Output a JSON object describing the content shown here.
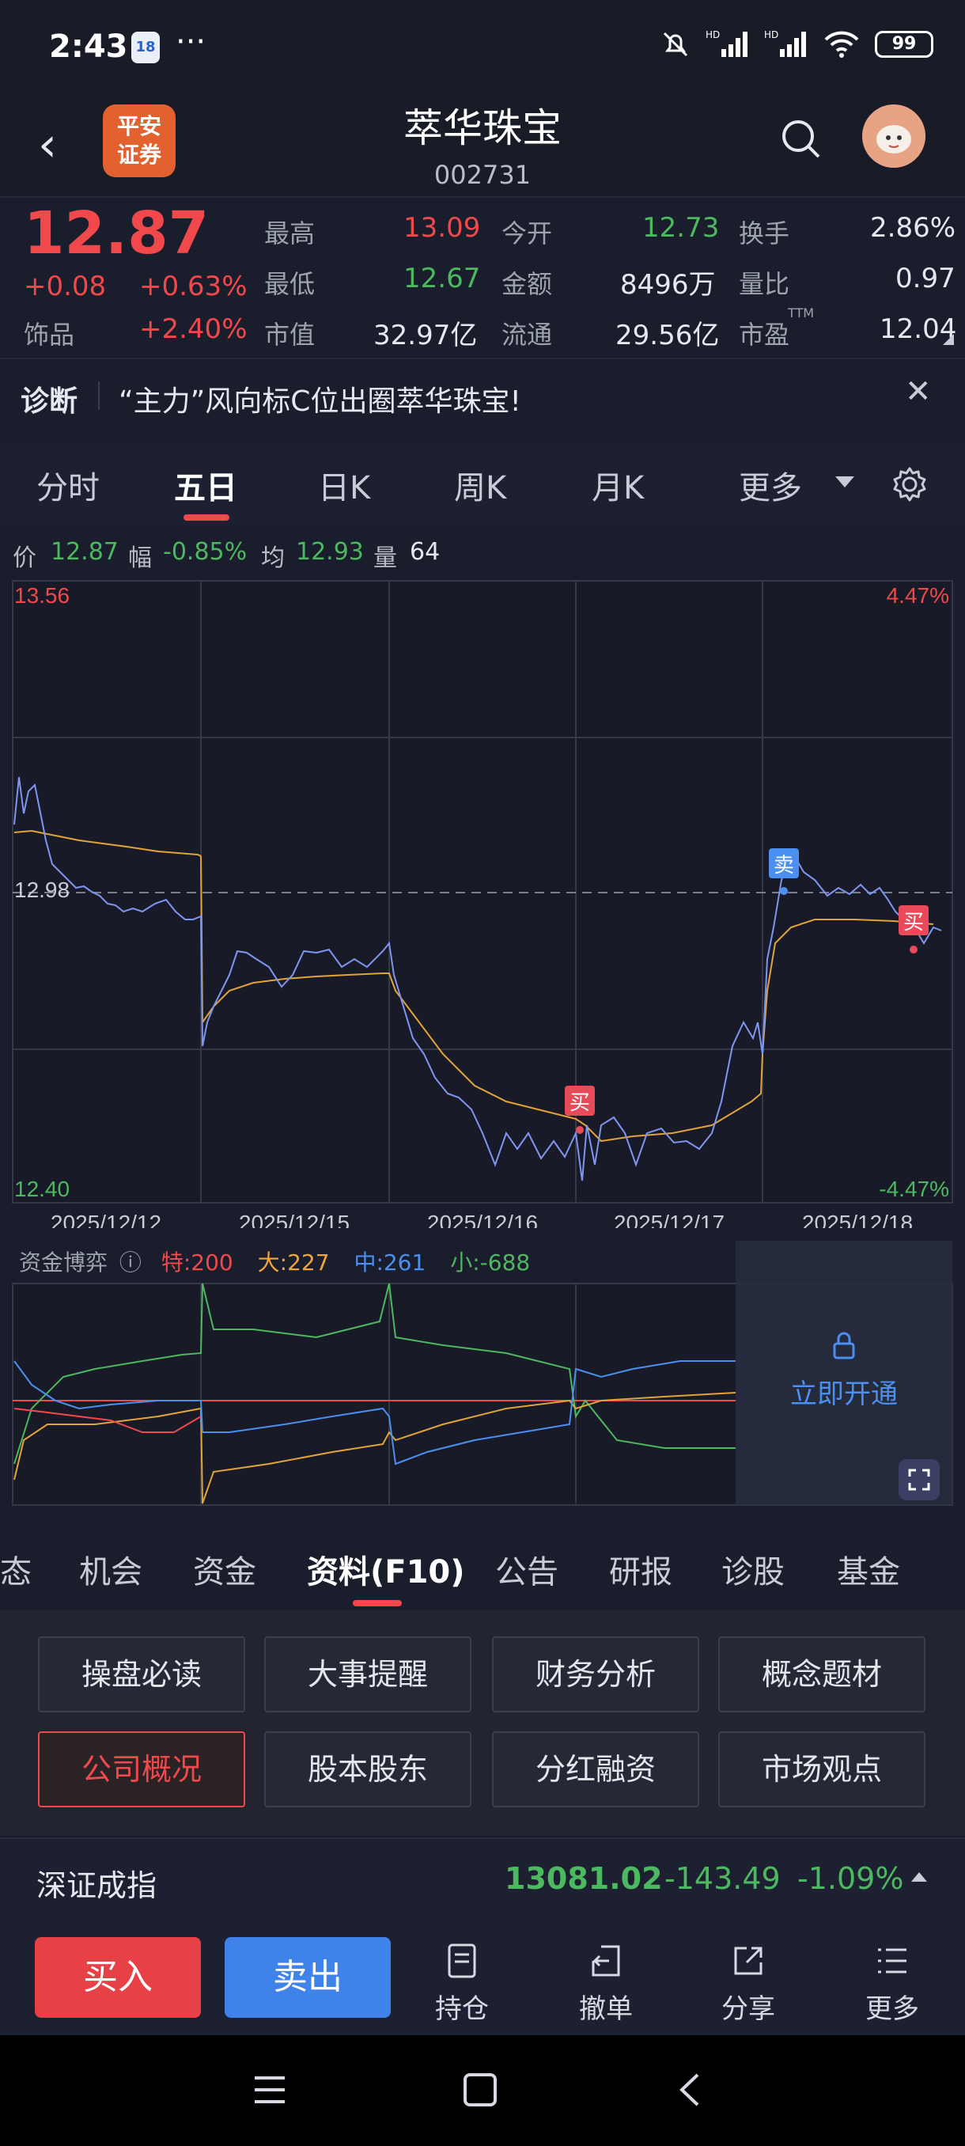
{
  "status": {
    "time": "2:43",
    "app_badge": "18",
    "dots": "···",
    "battery": "99"
  },
  "header": {
    "back": "‹",
    "logo": "平安\n证券",
    "logo_line1": "平安",
    "logo_line2": "证券",
    "title": "萃华珠宝",
    "code": "002731"
  },
  "quote": {
    "price": "12.87",
    "change": "+0.08",
    "change_pct": "+0.63%",
    "sector": "饰品",
    "sector_pct": "+2.40%",
    "high_label": "最高",
    "high": "13.09",
    "open_label": "今开",
    "open": "12.73",
    "turnover_label": "换手",
    "turnover": "2.86%",
    "low_label": "最低",
    "low": "12.67",
    "amount_label": "金额",
    "amount": "8496万",
    "vol_ratio_label": "量比",
    "vol_ratio": "0.97",
    "mktcap_label": "市值",
    "mktcap": "32.97亿",
    "float_label": "流通",
    "float": "29.56亿",
    "pe_label": "市盈",
    "pe_sup": "TTM",
    "pe": "12.04"
  },
  "diagnosis": {
    "label": "诊断",
    "text": "“主力”风向标C位出圈萃华珠宝!",
    "close": "✕"
  },
  "chart_tabs": [
    {
      "label": "分时",
      "active": false
    },
    {
      "label": "五日",
      "active": true
    },
    {
      "label": "日K",
      "active": false
    },
    {
      "label": "周K",
      "active": false
    },
    {
      "label": "月K",
      "active": false
    },
    {
      "label": "更多",
      "active": false
    }
  ],
  "info_line": {
    "price_label": "价",
    "price": "12.87",
    "amp_label": "幅",
    "amp": "-0.85%",
    "avg_label": "均",
    "avg": "12.93",
    "vol_label": "量",
    "vol": "64"
  },
  "chart_labels": {
    "top_price": "13.56",
    "top_pct": "4.47%",
    "mid_price": "12.98",
    "bottom_price": "12.40",
    "bottom_pct": "-4.47%",
    "dates": [
      "2025/12/12",
      "2025/12/15",
      "2025/12/16",
      "2025/12/17",
      "2025/12/18"
    ],
    "buy": "买",
    "sell": "卖"
  },
  "fund_flow": {
    "label": "资金博弈",
    "info_icon": "ⓘ",
    "te_label": "特:200",
    "da_label": "大:227",
    "zhong_label": "中:261",
    "xiao_label": "小:-688",
    "unlock": "立即开通"
  },
  "sub_tabs": [
    {
      "label": "态",
      "active": false
    },
    {
      "label": "机会",
      "active": false
    },
    {
      "label": "资金",
      "active": false
    },
    {
      "label": "资料(F10)",
      "active": true
    },
    {
      "label": "公告",
      "active": false
    },
    {
      "label": "研报",
      "active": false
    },
    {
      "label": "诊股",
      "active": false
    },
    {
      "label": "基金",
      "active": false
    }
  ],
  "f10_buttons": [
    "操盘必读",
    "大事提醒",
    "财务分析",
    "概念题材",
    "公司概况",
    "股本股东",
    "分红融资",
    "市场观点"
  ],
  "index_bar": {
    "name": "深证成指",
    "value": "13081.02",
    "change": "-143.49",
    "pct": "-1.09%"
  },
  "bottom": {
    "buy": "买入",
    "sell": "卖出",
    "hold": "持仓",
    "cancel": "撤单",
    "share": "分享",
    "more": "更多"
  },
  "colors": {
    "red": "#f0484b",
    "green": "#4cb85f",
    "blue": "#4b8ff0",
    "line_blue": "#7f95f0",
    "line_orange": "#e2a33a",
    "bg": "#1a1d2b"
  }
}
